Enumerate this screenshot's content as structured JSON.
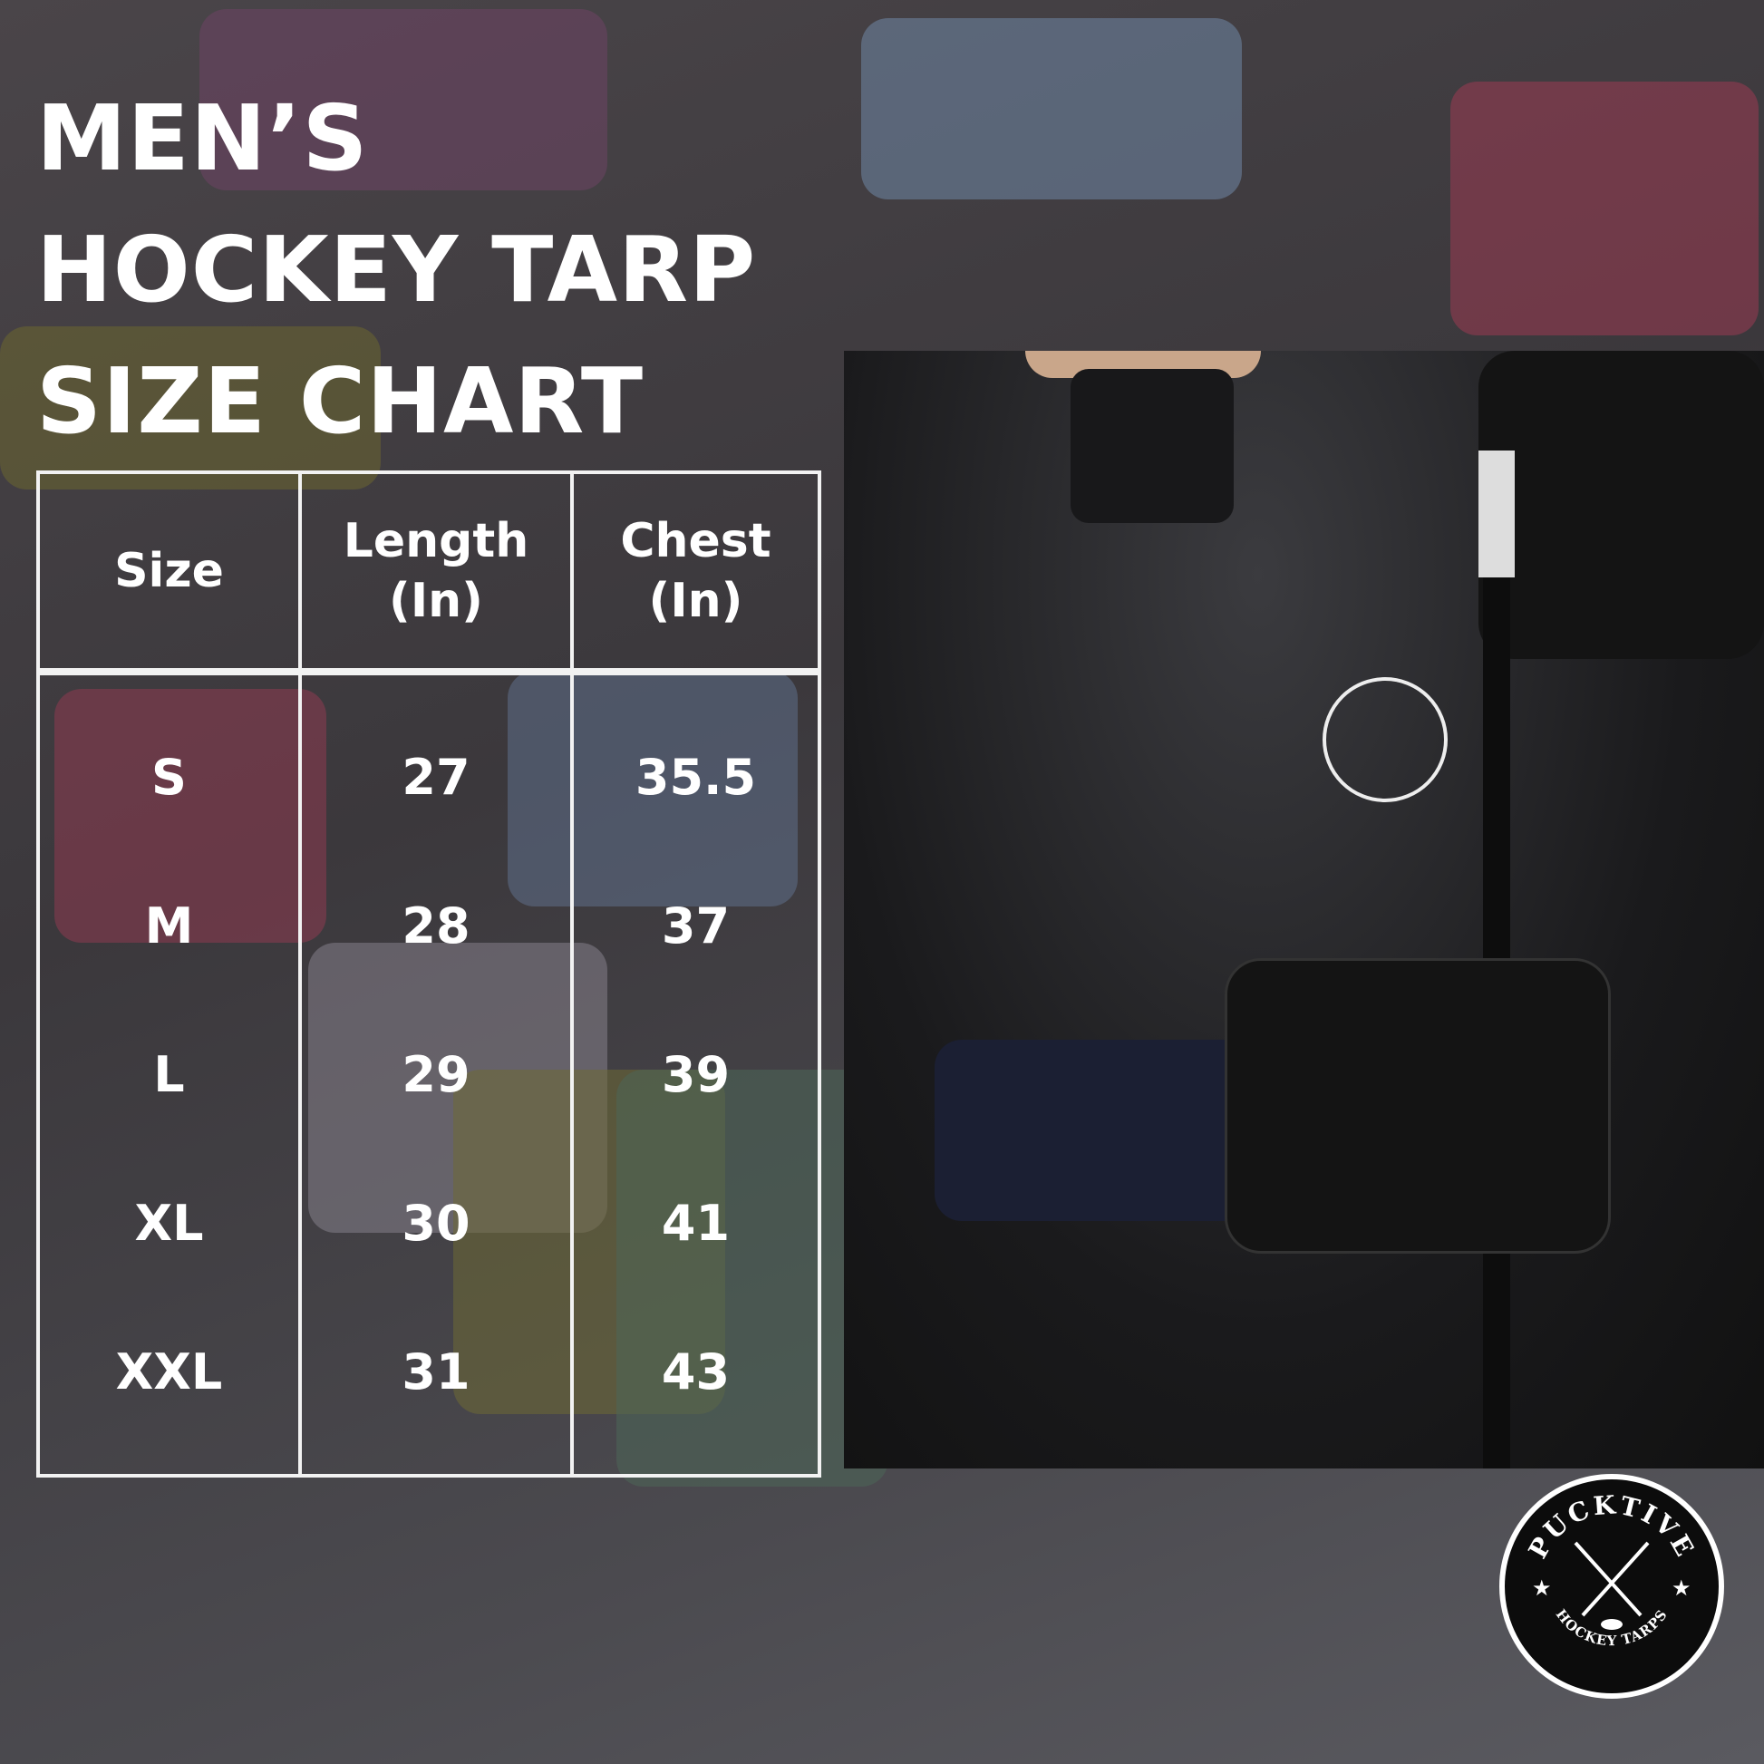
{
  "title": {
    "line1": "MEN’S",
    "line2": "HOCKEY TARP",
    "line3": "SIZE CHART"
  },
  "table": {
    "headers": [
      "Size",
      "Length\n(In)",
      "Chest\n(In)"
    ],
    "header_lines": {
      "length": [
        "Length",
        "(In)"
      ],
      "chest": [
        "Chest",
        "(In)"
      ]
    },
    "rows": [
      {
        "size": "S",
        "length": "27",
        "chest": "35.5"
      },
      {
        "size": "M",
        "length": "28",
        "chest": "37"
      },
      {
        "size": "L",
        "length": "29",
        "chest": "39"
      },
      {
        "size": "XL",
        "length": "30",
        "chest": "41"
      },
      {
        "size": "XXL",
        "length": "31",
        "chest": "43"
      }
    ]
  },
  "logo": {
    "top_text": "PUCKTIVE",
    "bottom_text": "HOCKEY TARPS"
  },
  "colors": {
    "text": "#ffffff",
    "table_border": "#f2f2f2",
    "background": "#454247"
  }
}
